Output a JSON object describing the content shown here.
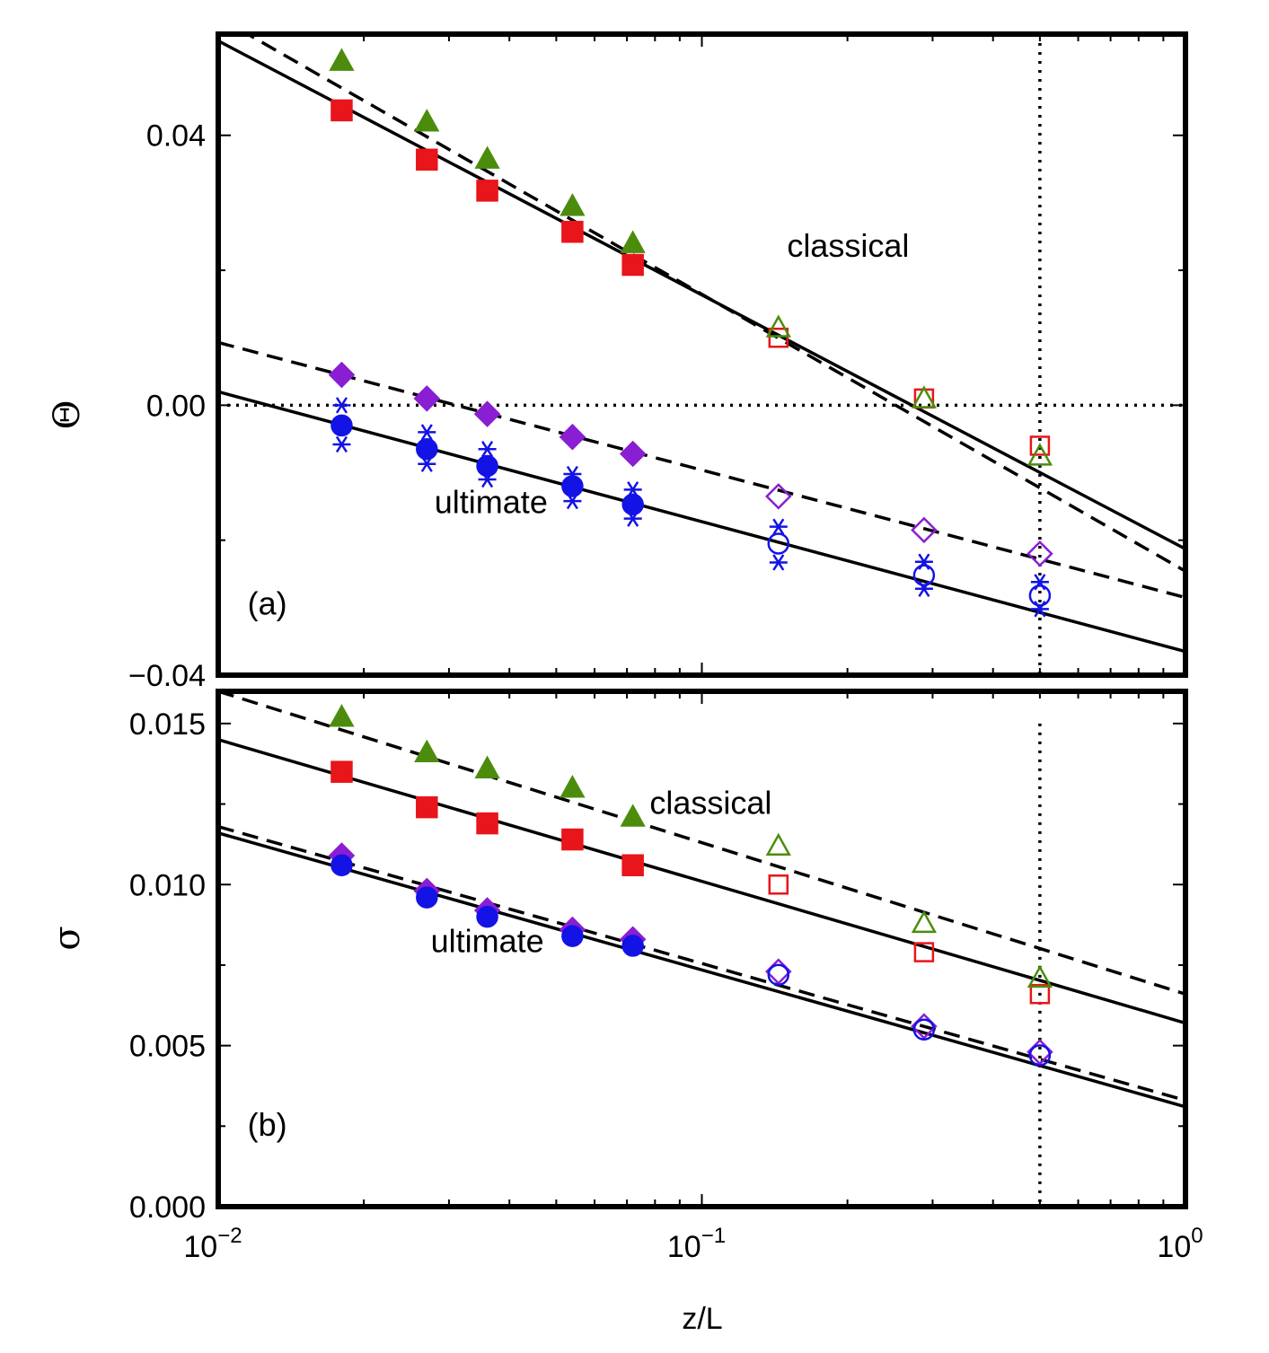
{
  "chart_data": [
    {
      "panel": "(a)",
      "type": "scatter",
      "xscale": "log",
      "xlim": [
        0.01,
        1
      ],
      "ylim": [
        -0.04,
        0.055
      ],
      "xlabel": "z/L",
      "ylabel": "Θ",
      "yticks": [
        {
          "value": 0.04,
          "label": "0.04"
        },
        {
          "value": 0.0,
          "label": "0.00"
        },
        {
          "value": -0.04,
          "label": "−0.04"
        }
      ],
      "annotations": [
        {
          "text": "classical",
          "x": 0.15,
          "y": 0.022
        },
        {
          "text": "ultimate",
          "x": 0.028,
          "y": -0.016
        },
        {
          "text": "(a)",
          "x": 0.0115,
          "y": -0.031
        }
      ],
      "hlines": [
        {
          "y": 0.0,
          "style": "dotted"
        }
      ],
      "vlines": [
        {
          "x": 0.5,
          "style": "dotted"
        }
      ],
      "fits": [
        {
          "style": "solid",
          "x": [
            0.01,
            1
          ],
          "y": [
            0.054,
            -0.0213
          ]
        },
        {
          "style": "dashed",
          "x": [
            0.01,
            1
          ],
          "y": [
            0.0575,
            -0.0246
          ]
        },
        {
          "style": "dashed",
          "x": [
            0.01,
            1
          ],
          "y": [
            0.0093,
            -0.0285
          ]
        },
        {
          "style": "solid",
          "x": [
            0.01,
            1
          ],
          "y": [
            0.002,
            -0.0365
          ]
        }
      ],
      "series": [
        {
          "marker": "square",
          "color": "#e8151b",
          "points": [
            {
              "x": 0.018,
              "y": 0.0437,
              "filled": true
            },
            {
              "x": 0.027,
              "y": 0.0364,
              "filled": true
            },
            {
              "x": 0.036,
              "y": 0.0318,
              "filled": true
            },
            {
              "x": 0.054,
              "y": 0.0257,
              "filled": true
            },
            {
              "x": 0.072,
              "y": 0.0208,
              "filled": true
            },
            {
              "x": 0.144,
              "y": 0.01,
              "filled": false
            },
            {
              "x": 0.288,
              "y": 0.001,
              "filled": false
            },
            {
              "x": 0.5,
              "y": -0.006,
              "filled": false
            }
          ]
        },
        {
          "marker": "triangle",
          "color": "#4c8c0c",
          "points": [
            {
              "x": 0.018,
              "y": 0.051,
              "filled": true
            },
            {
              "x": 0.027,
              "y": 0.042,
              "filled": true
            },
            {
              "x": 0.036,
              "y": 0.0365,
              "filled": true
            },
            {
              "x": 0.054,
              "y": 0.0295,
              "filled": true
            },
            {
              "x": 0.072,
              "y": 0.024,
              "filled": true
            },
            {
              "x": 0.144,
              "y": 0.0115,
              "filled": false
            },
            {
              "x": 0.288,
              "y": 0.001,
              "filled": false
            },
            {
              "x": 0.5,
              "y": -0.0075,
              "filled": false
            }
          ]
        },
        {
          "marker": "diamond",
          "color": "#8a1ed2",
          "points": [
            {
              "x": 0.018,
              "y": 0.0045,
              "filled": true
            },
            {
              "x": 0.027,
              "y": 0.001,
              "filled": true
            },
            {
              "x": 0.036,
              "y": -0.0013,
              "filled": true
            },
            {
              "x": 0.054,
              "y": -0.0047,
              "filled": true
            },
            {
              "x": 0.072,
              "y": -0.0072,
              "filled": true
            },
            {
              "x": 0.144,
              "y": -0.0135,
              "filled": false
            },
            {
              "x": 0.288,
              "y": -0.0185,
              "filled": false
            },
            {
              "x": 0.5,
              "y": -0.022,
              "filled": false
            }
          ]
        },
        {
          "marker": "circle",
          "color": "#1313e6",
          "points": [
            {
              "x": 0.018,
              "y": -0.003,
              "filled": true
            },
            {
              "x": 0.027,
              "y": -0.0065,
              "filled": true
            },
            {
              "x": 0.036,
              "y": -0.009,
              "filled": true
            },
            {
              "x": 0.054,
              "y": -0.012,
              "filled": true
            },
            {
              "x": 0.072,
              "y": -0.0147,
              "filled": true
            },
            {
              "x": 0.144,
              "y": -0.0205,
              "filled": false
            },
            {
              "x": 0.288,
              "y": -0.0252,
              "filled": false
            },
            {
              "x": 0.5,
              "y": -0.0282,
              "filled": false
            }
          ]
        },
        {
          "marker": "asterisk",
          "color": "#1313e6",
          "points": [
            {
              "x": 0.018,
              "y": 0.0
            },
            {
              "x": 0.018,
              "y": -0.0058
            },
            {
              "x": 0.027,
              "y": -0.004
            },
            {
              "x": 0.027,
              "y": -0.0087
            },
            {
              "x": 0.036,
              "y": -0.0065
            },
            {
              "x": 0.036,
              "y": -0.011
            },
            {
              "x": 0.054,
              "y": -0.0102
            },
            {
              "x": 0.054,
              "y": -0.0142
            },
            {
              "x": 0.072,
              "y": -0.0125
            },
            {
              "x": 0.072,
              "y": -0.0168
            },
            {
              "x": 0.144,
              "y": -0.018
            },
            {
              "x": 0.144,
              "y": -0.0233
            },
            {
              "x": 0.288,
              "y": -0.0232
            },
            {
              "x": 0.288,
              "y": -0.0272
            },
            {
              "x": 0.5,
              "y": -0.0262
            },
            {
              "x": 0.5,
              "y": -0.0302
            }
          ]
        }
      ]
    },
    {
      "panel": "(b)",
      "type": "scatter",
      "xscale": "log",
      "xlim": [
        0.01,
        1
      ],
      "ylim": [
        0,
        0.016
      ],
      "xlabel": "z/L",
      "ylabel": "σ",
      "yticks": [
        {
          "value": 0.015,
          "label": "0.015"
        },
        {
          "value": 0.01,
          "label": "0.010"
        },
        {
          "value": 0.005,
          "label": "0.005"
        },
        {
          "value": 0.0,
          "label": "0.000"
        }
      ],
      "xticks": [
        {
          "value": 0.01,
          "base": "10",
          "exp": "−2"
        },
        {
          "value": 0.1,
          "base": "10",
          "exp": "−1"
        },
        {
          "value": 1,
          "base": "10",
          "exp": "0"
        }
      ],
      "annotations": [
        {
          "text": "classical",
          "x": 0.078,
          "y": 0.0122
        },
        {
          "text": "ultimate",
          "x": 0.0275,
          "y": 0.0079
        },
        {
          "text": "(b)",
          "x": 0.0115,
          "y": 0.0022
        }
      ],
      "vlines": [
        {
          "x": 0.5,
          "style": "dotted",
          "ymax": 0.015
        }
      ],
      "fits": [
        {
          "style": "dashed",
          "x": [
            0.01,
            1
          ],
          "y": [
            0.016,
            0.0066
          ]
        },
        {
          "style": "solid",
          "x": [
            0.01,
            1
          ],
          "y": [
            0.0145,
            0.0057
          ]
        },
        {
          "style": "dashed",
          "x": [
            0.01,
            1
          ],
          "y": [
            0.0118,
            0.0033
          ]
        },
        {
          "style": "solid",
          "x": [
            0.01,
            1
          ],
          "y": [
            0.0116,
            0.0031
          ]
        }
      ],
      "series": [
        {
          "marker": "square",
          "color": "#e8151b",
          "points": [
            {
              "x": 0.018,
              "y": 0.0135,
              "filled": true
            },
            {
              "x": 0.027,
              "y": 0.0124,
              "filled": true
            },
            {
              "x": 0.036,
              "y": 0.0119,
              "filled": true
            },
            {
              "x": 0.054,
              "y": 0.0114,
              "filled": true
            },
            {
              "x": 0.072,
              "y": 0.0106,
              "filled": true
            },
            {
              "x": 0.144,
              "y": 0.01,
              "filled": false
            },
            {
              "x": 0.288,
              "y": 0.0079,
              "filled": false
            },
            {
              "x": 0.5,
              "y": 0.0066,
              "filled": false
            }
          ]
        },
        {
          "marker": "triangle",
          "color": "#4c8c0c",
          "points": [
            {
              "x": 0.018,
              "y": 0.0152,
              "filled": true
            },
            {
              "x": 0.027,
              "y": 0.0141,
              "filled": true
            },
            {
              "x": 0.036,
              "y": 0.0136,
              "filled": true
            },
            {
              "x": 0.054,
              "y": 0.013,
              "filled": true
            },
            {
              "x": 0.072,
              "y": 0.0121,
              "filled": true
            },
            {
              "x": 0.144,
              "y": 0.0112,
              "filled": false
            },
            {
              "x": 0.288,
              "y": 0.0088,
              "filled": false
            },
            {
              "x": 0.5,
              "y": 0.0071,
              "filled": false
            }
          ]
        },
        {
          "marker": "diamond",
          "color": "#8a1ed2",
          "points": [
            {
              "x": 0.018,
              "y": 0.0109,
              "filled": true
            },
            {
              "x": 0.027,
              "y": 0.0098,
              "filled": true
            },
            {
              "x": 0.036,
              "y": 0.0092,
              "filled": true
            },
            {
              "x": 0.054,
              "y": 0.0086,
              "filled": true
            },
            {
              "x": 0.072,
              "y": 0.0083,
              "filled": true
            },
            {
              "x": 0.144,
              "y": 0.0073,
              "filled": false
            },
            {
              "x": 0.288,
              "y": 0.0056,
              "filled": false
            },
            {
              "x": 0.5,
              "y": 0.0048,
              "filled": false
            }
          ]
        },
        {
          "marker": "circle",
          "color": "#1313e6",
          "points": [
            {
              "x": 0.018,
              "y": 0.0106,
              "filled": true
            },
            {
              "x": 0.027,
              "y": 0.0096,
              "filled": true
            },
            {
              "x": 0.036,
              "y": 0.009,
              "filled": true
            },
            {
              "x": 0.054,
              "y": 0.0084,
              "filled": true
            },
            {
              "x": 0.072,
              "y": 0.0081,
              "filled": true
            },
            {
              "x": 0.144,
              "y": 0.0072,
              "filled": false
            },
            {
              "x": 0.288,
              "y": 0.0055,
              "filled": false
            },
            {
              "x": 0.5,
              "y": 0.0047,
              "filled": false
            }
          ]
        }
      ]
    }
  ]
}
